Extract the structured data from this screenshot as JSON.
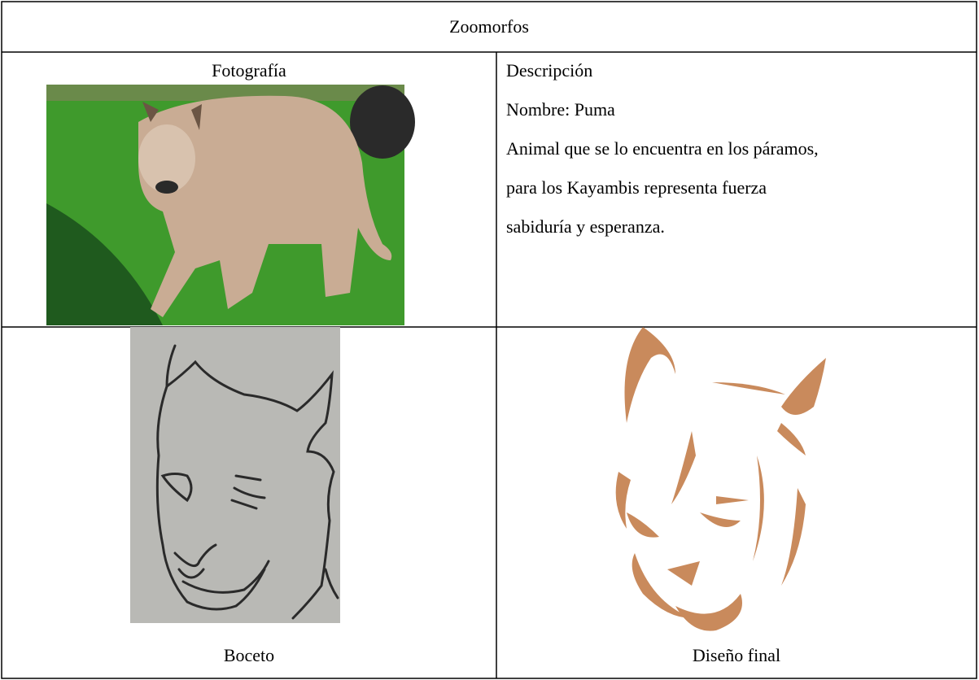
{
  "title": "Zoomorfos",
  "photo_label": "Fotografía",
  "description": {
    "heading": "Descripción",
    "name": "Nombre: Puma",
    "lines": [
      "Animal que se lo encuentra en los páramos,",
      "para los Kayambis representa fuerza",
      "sabiduría y esperanza."
    ]
  },
  "sketch_label": "Boceto",
  "final_label": "Diseño final"
}
